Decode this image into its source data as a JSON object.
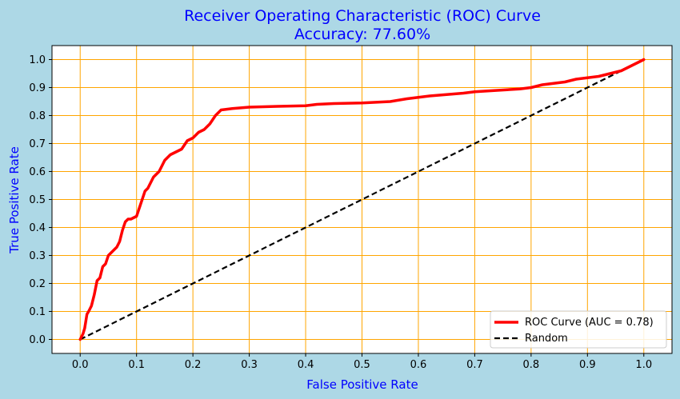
{
  "chart_data": {
    "type": "line",
    "title": "Receiver Operating Characteristic (ROC) Curve",
    "subtitle": "Accuracy: 77.60%",
    "xlabel": "False Positive Rate",
    "ylabel": "True Positive Rate",
    "xlim": [
      -0.05,
      1.05
    ],
    "ylim": [
      -0.05,
      1.05
    ],
    "xticks": [
      0.0,
      0.1,
      0.2,
      0.3,
      0.4,
      0.5,
      0.6,
      0.7,
      0.8,
      0.9,
      1.0
    ],
    "yticks": [
      0.0,
      0.1,
      0.2,
      0.3,
      0.4,
      0.5,
      0.6,
      0.7,
      0.8,
      0.9,
      1.0
    ],
    "xtick_labels": [
      "0.0",
      "0.1",
      "0.2",
      "0.3",
      "0.4",
      "0.5",
      "0.6",
      "0.7",
      "0.8",
      "0.9",
      "1.0"
    ],
    "ytick_labels": [
      "0.0",
      "0.1",
      "0.2",
      "0.3",
      "0.4",
      "0.5",
      "0.6",
      "0.7",
      "0.8",
      "0.9",
      "1.0"
    ],
    "grid": true,
    "grid_color": "#ffa500",
    "legend_position": "lower-right",
    "series": [
      {
        "name": "ROC Curve (AUC = 0.78)",
        "color": "#ff0000",
        "style": "solid",
        "x": [
          0.0,
          0.005,
          0.008,
          0.012,
          0.015,
          0.02,
          0.025,
          0.03,
          0.035,
          0.04,
          0.045,
          0.05,
          0.055,
          0.06,
          0.065,
          0.07,
          0.075,
          0.08,
          0.085,
          0.09,
          0.1,
          0.11,
          0.115,
          0.12,
          0.13,
          0.14,
          0.15,
          0.16,
          0.17,
          0.18,
          0.19,
          0.2,
          0.21,
          0.22,
          0.23,
          0.24,
          0.25,
          0.27,
          0.3,
          0.35,
          0.4,
          0.42,
          0.45,
          0.5,
          0.55,
          0.58,
          0.62,
          0.65,
          0.68,
          0.7,
          0.74,
          0.78,
          0.8,
          0.82,
          0.84,
          0.86,
          0.88,
          0.9,
          0.92,
          0.94,
          0.96,
          0.98,
          1.0
        ],
        "y": [
          0.0,
          0.02,
          0.04,
          0.09,
          0.1,
          0.12,
          0.16,
          0.21,
          0.22,
          0.26,
          0.27,
          0.3,
          0.31,
          0.32,
          0.33,
          0.35,
          0.39,
          0.42,
          0.43,
          0.43,
          0.44,
          0.5,
          0.53,
          0.54,
          0.58,
          0.6,
          0.64,
          0.66,
          0.67,
          0.68,
          0.71,
          0.72,
          0.74,
          0.75,
          0.77,
          0.8,
          0.82,
          0.825,
          0.83,
          0.833,
          0.835,
          0.84,
          0.843,
          0.845,
          0.85,
          0.86,
          0.87,
          0.875,
          0.88,
          0.885,
          0.89,
          0.895,
          0.9,
          0.91,
          0.915,
          0.92,
          0.93,
          0.935,
          0.94,
          0.95,
          0.96,
          0.98,
          1.0
        ]
      },
      {
        "name": "Random",
        "color": "#000000",
        "style": "dashed",
        "x": [
          0.0,
          1.0
        ],
        "y": [
          0.0,
          1.0
        ]
      }
    ]
  }
}
